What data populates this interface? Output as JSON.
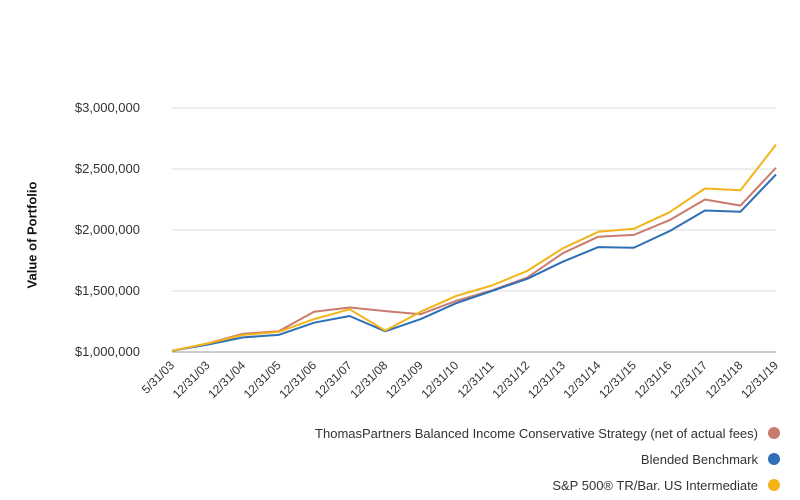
{
  "chart_data": {
    "type": "line",
    "ylabel": "Value of Portfolio",
    "xlabel": "",
    "ylim": [
      1000000,
      3000000
    ],
    "yticks": [
      1000000,
      1500000,
      2000000,
      2500000,
      3000000
    ],
    "ytick_labels": [
      "$1,000,000",
      "$1,500,000",
      "$2,000,000",
      "$2,500,000",
      "$3,000,000"
    ],
    "grid": "horizontal",
    "legend_position": "bottom-right",
    "categories": [
      "5/31/03",
      "12/31/03",
      "12/31/04",
      "12/31/05",
      "12/31/06",
      "12/31/07",
      "12/31/08",
      "12/31/09",
      "12/31/10",
      "12/31/11",
      "12/31/12",
      "12/31/13",
      "12/31/14",
      "12/31/15",
      "12/31/16",
      "12/31/17",
      "12/31/18",
      "12/31/19"
    ],
    "series": [
      {
        "name": "ThomasPartners Balanced Income Conservative Strategy (net of actual fees)",
        "color": "#c97b6e",
        "values": [
          1010000,
          1070000,
          1150000,
          1170000,
          1330000,
          1365000,
          1335000,
          1310000,
          1420000,
          1505000,
          1610000,
          1810000,
          1945000,
          1960000,
          2080000,
          2250000,
          2200000,
          2510000
        ]
      },
      {
        "name": "Blended Benchmark",
        "color": "#2f6fb5",
        "values": [
          1010000,
          1060000,
          1120000,
          1140000,
          1240000,
          1295000,
          1170000,
          1270000,
          1400000,
          1500000,
          1600000,
          1740000,
          1860000,
          1855000,
          1990000,
          2160000,
          2150000,
          2455000
        ]
      },
      {
        "name": "S&P 500® TR/Bar. US Intermediate",
        "color": "#f2b418",
        "values": [
          1010000,
          1070000,
          1140000,
          1165000,
          1270000,
          1350000,
          1175000,
          1330000,
          1460000,
          1545000,
          1665000,
          1850000,
          1985000,
          2010000,
          2145000,
          2340000,
          2325000,
          2700000
        ]
      }
    ]
  }
}
